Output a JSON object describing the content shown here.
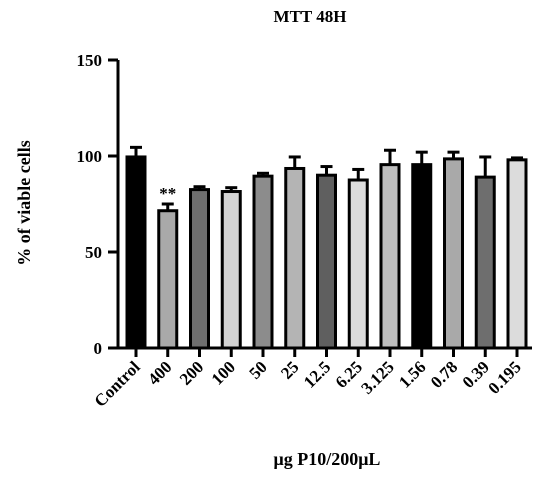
{
  "chart_data": {
    "type": "bar",
    "title": "MTT 48H",
    "xlabel": "μg P10/200μL",
    "ylabel": "% of viable cells",
    "ylim": [
      0,
      150
    ],
    "yticks": [
      0,
      50,
      100,
      150
    ],
    "grid": false,
    "categories": [
      "Control",
      "400",
      "200",
      "100",
      "50",
      "25",
      "12.5",
      "6.25",
      "3.125",
      "1.56",
      "0.78",
      "0.39",
      "0.195"
    ],
    "values": [
      99.5,
      71.5,
      82.5,
      81.5,
      89.5,
      93.5,
      90.0,
      87.5,
      95.5,
      95.5,
      98.5,
      89.0,
      98.0
    ],
    "errors": [
      5.0,
      3.5,
      1.5,
      2.0,
      1.5,
      6.0,
      4.5,
      5.5,
      7.5,
      6.5,
      3.5,
      10.5,
      1.0
    ],
    "bar_colors": [
      "#000000",
      "#a9a9a9",
      "#6e6e6e",
      "#d3d3d3",
      "#8c8c8c",
      "#b4b4b4",
      "#5f5f5f",
      "#dcdcdc",
      "#bebebe",
      "#000000",
      "#a9a9a9",
      "#6e6e6e",
      "#dcdcdc"
    ],
    "annotations": [
      {
        "category": "400",
        "text": "**"
      }
    ]
  }
}
